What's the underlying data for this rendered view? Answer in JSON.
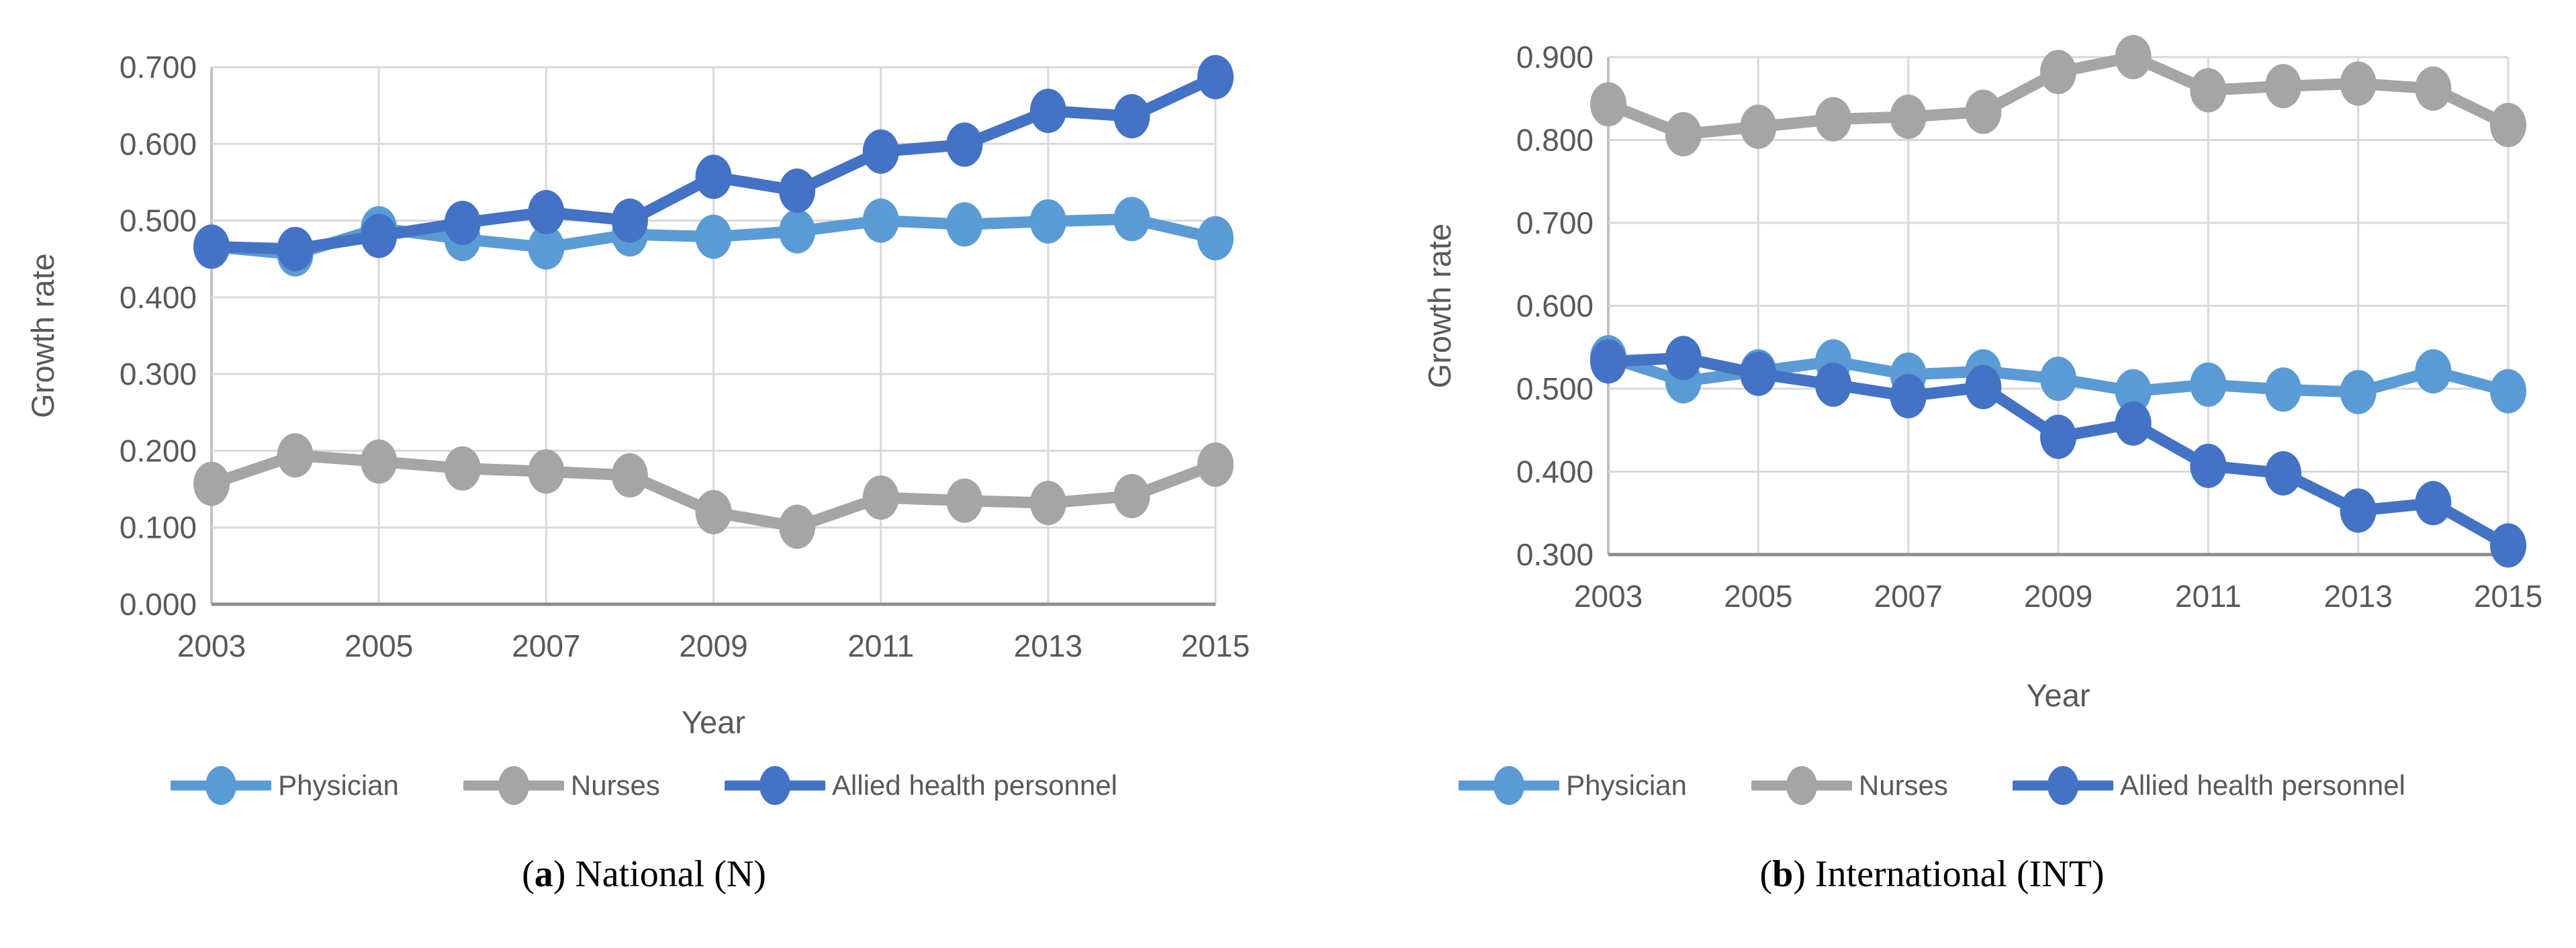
{
  "colors": {
    "physician": "#5B9BD5",
    "nurses": "#A5A5A5",
    "allied": "#4472C4",
    "gridline": "#D9D9D9",
    "left_axis": "#C0C0C0",
    "bottom_axis": "#8E8E8E",
    "tick_text": "#595959",
    "caption_text": "#000000",
    "background": "#FFFFFF"
  },
  "chart_data": [
    {
      "id": "a",
      "type": "line",
      "caption": {
        "pre": "(",
        "bold": "a",
        "post": ") National (N)"
      },
      "xlabel": "Year",
      "ylabel": "Growth rate",
      "x": [
        2003,
        2004,
        2005,
        2006,
        2007,
        2008,
        2009,
        2010,
        2011,
        2012,
        2013,
        2014,
        2015
      ],
      "xtick_labels": [
        "2003",
        "2005",
        "2007",
        "2009",
        "2011",
        "2013",
        "2015"
      ],
      "ytick_labels": [
        "0.000",
        "0.100",
        "0.200",
        "0.300",
        "0.400",
        "0.500",
        "0.600",
        "0.700"
      ],
      "ylim": [
        0.0,
        0.7
      ],
      "grid": true,
      "legend_position": "bottom",
      "series": [
        {
          "name": "Physician",
          "color": "#5B9BD5",
          "values": [
            0.466,
            0.456,
            0.49,
            0.476,
            0.465,
            0.482,
            0.479,
            0.486,
            0.5,
            0.495,
            0.499,
            0.502,
            0.477
          ]
        },
        {
          "name": "Nurses",
          "color": "#A5A5A5",
          "values": [
            0.157,
            0.194,
            0.186,
            0.177,
            0.173,
            0.168,
            0.12,
            0.101,
            0.139,
            0.135,
            0.132,
            0.141,
            0.182
          ]
        },
        {
          "name": "Allied health personnel",
          "color": "#4472C4",
          "values": [
            0.466,
            0.463,
            0.48,
            0.497,
            0.511,
            0.5,
            0.557,
            0.539,
            0.59,
            0.599,
            0.643,
            0.636,
            0.687
          ]
        }
      ]
    },
    {
      "id": "b",
      "type": "line",
      "caption": {
        "pre": "(",
        "bold": "b",
        "post": ") International (INT)"
      },
      "xlabel": "Year",
      "ylabel": "Growth rate",
      "x": [
        2003,
        2004,
        2005,
        2006,
        2007,
        2008,
        2009,
        2010,
        2011,
        2012,
        2013,
        2014,
        2015
      ],
      "xtick_labels": [
        "2003",
        "2005",
        "2007",
        "2009",
        "2011",
        "2013",
        "2015"
      ],
      "ytick_labels": [
        "0.300",
        "0.400",
        "0.500",
        "0.600",
        "0.700",
        "0.800",
        "0.900"
      ],
      "ylim": [
        0.3,
        0.9
      ],
      "grid": true,
      "legend_position": "bottom",
      "series": [
        {
          "name": "Physician",
          "color": "#5B9BD5",
          "values": [
            0.538,
            0.509,
            0.521,
            0.533,
            0.517,
            0.521,
            0.512,
            0.497,
            0.505,
            0.499,
            0.496,
            0.521,
            0.497
          ]
        },
        {
          "name": "Nurses",
          "color": "#A5A5A5",
          "values": [
            0.843,
            0.807,
            0.816,
            0.825,
            0.828,
            0.834,
            0.882,
            0.9,
            0.86,
            0.865,
            0.868,
            0.862,
            0.818
          ]
        },
        {
          "name": "Allied health personnel",
          "color": "#4472C4",
          "values": [
            0.533,
            0.537,
            0.518,
            0.505,
            0.491,
            0.502,
            0.442,
            0.458,
            0.407,
            0.398,
            0.353,
            0.362,
            0.311
          ]
        }
      ]
    }
  ]
}
